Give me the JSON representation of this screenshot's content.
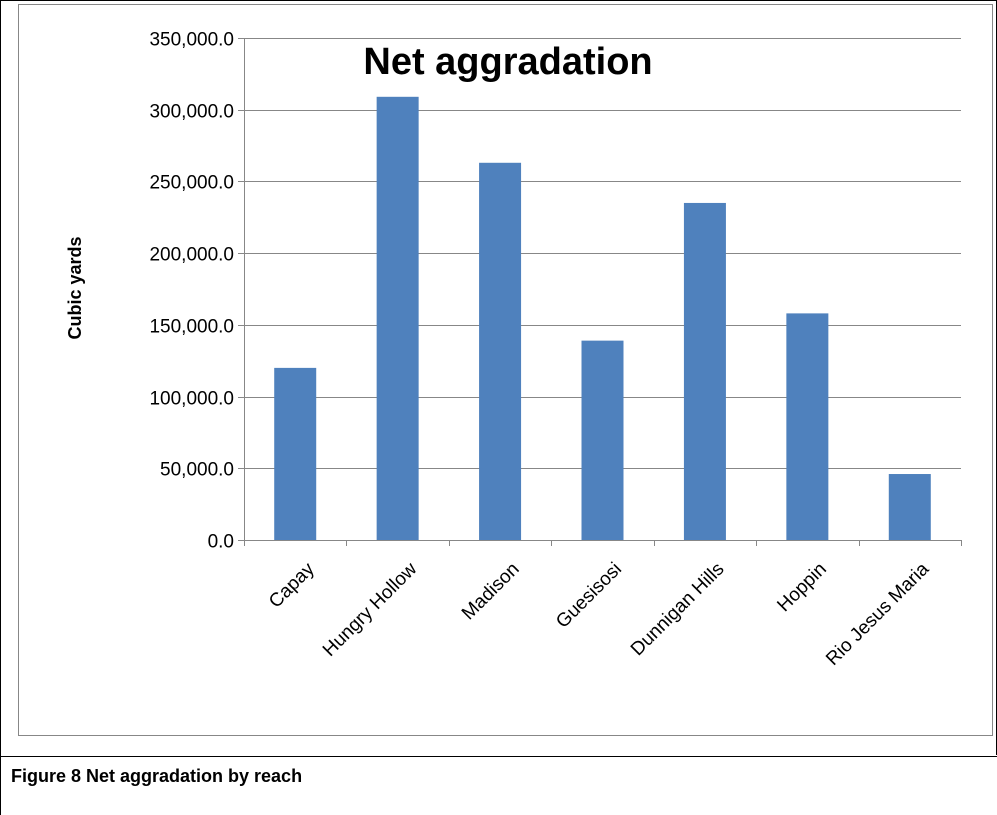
{
  "caption": "Figure 8 Net aggradation by reach",
  "chart_data": {
    "type": "bar",
    "title": "Net aggradation",
    "xlabel": "",
    "ylabel": "Cubic yards",
    "categories": [
      "Capay",
      "Hungry Hollow",
      "Madison",
      "Guesisosi",
      "Dunnigan Hills",
      "Hoppin",
      "Rio Jesus Maria"
    ],
    "values": [
      120000,
      309000,
      263000,
      139000,
      235000,
      158000,
      46000
    ],
    "ylim": [
      0,
      350000
    ],
    "yticks": [
      0,
      50000,
      100000,
      150000,
      200000,
      250000,
      300000,
      350000
    ],
    "ytick_labels": [
      "0.0",
      "50,000.0",
      "100,000.0",
      "150,000.0",
      "200,000.0",
      "250,000.0",
      "300,000.0",
      "350,000.0"
    ],
    "grid": true,
    "legend": "none",
    "bar_color": "#4f81bd"
  }
}
